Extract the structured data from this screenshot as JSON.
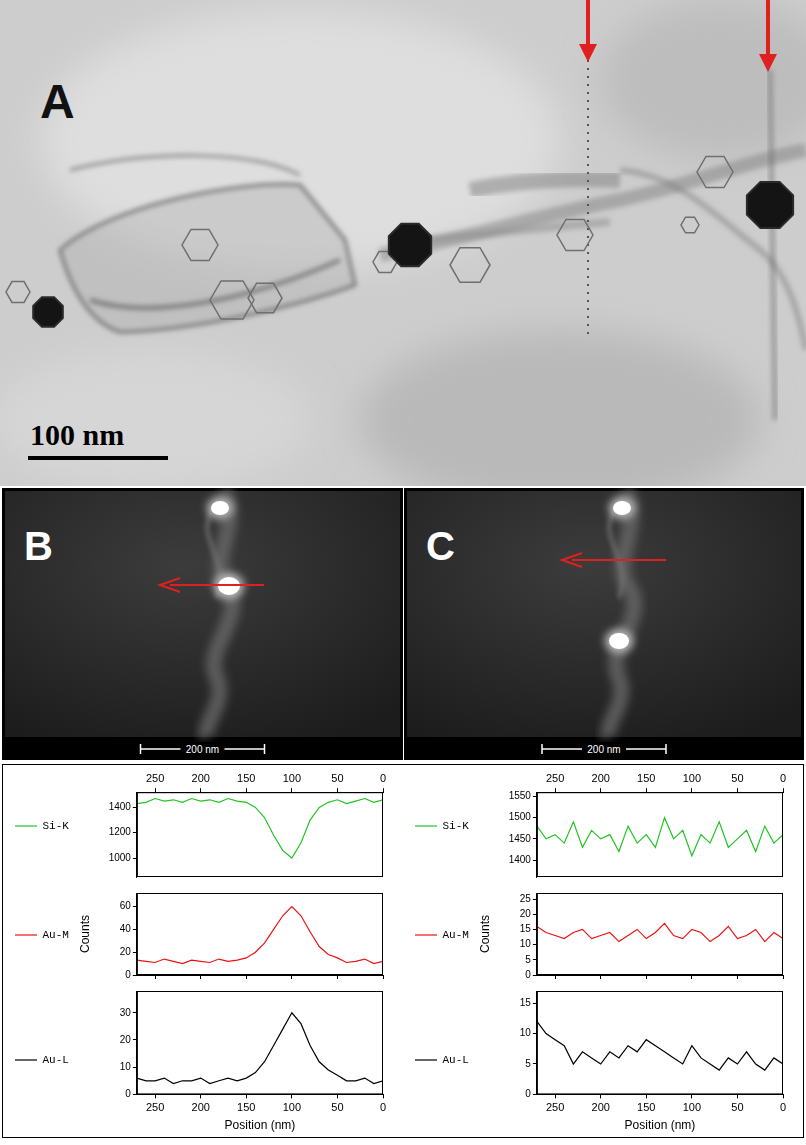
{
  "figure": {
    "panels": [
      {
        "label": "A",
        "scale_bar": "100 nm"
      },
      {
        "label": "B",
        "scale_bar": "200 nm"
      },
      {
        "label": "C",
        "scale_bar": "200 nm"
      }
    ]
  },
  "chart_data": [
    {
      "type": "line",
      "x": [
        0,
        10,
        20,
        30,
        40,
        50,
        60,
        70,
        80,
        90,
        100,
        110,
        120,
        130,
        140,
        150,
        160,
        170,
        180,
        190,
        200,
        210,
        220,
        230,
        240,
        250,
        260,
        270
      ],
      "xlim": [
        270,
        0
      ],
      "xticks": [
        0,
        50,
        100,
        150,
        200,
        250
      ],
      "ylim": [
        850,
        1520
      ],
      "yticks": [
        1000,
        1200,
        1400
      ],
      "series": [
        {
          "name": "Si-K",
          "color": "#22c422",
          "values": [
            1460,
            1440,
            1470,
            1450,
            1430,
            1460,
            1440,
            1400,
            1300,
            1120,
            1000,
            1060,
            1180,
            1320,
            1400,
            1440,
            1450,
            1470,
            1440,
            1460,
            1450,
            1470,
            1440,
            1460,
            1450,
            1470,
            1440,
            1430
          ]
        }
      ],
      "grid": false,
      "legend": "left",
      "tick_labels": true
    },
    {
      "type": "line",
      "x": [
        0,
        10,
        20,
        30,
        40,
        50,
        60,
        70,
        80,
        90,
        100,
        110,
        120,
        130,
        140,
        150,
        160,
        170,
        180,
        190,
        200,
        210,
        220,
        230,
        240,
        250,
        260,
        270
      ],
      "xlim": [
        270,
        0
      ],
      "xticks": [
        0,
        50,
        100,
        150,
        200,
        250
      ],
      "ylim": [
        0,
        72
      ],
      "yticks": [
        0,
        20,
        40,
        60
      ],
      "y_label": "Counts",
      "series": [
        {
          "name": "Au-M",
          "color": "#ee1111",
          "values": [
            12,
            10,
            14,
            12,
            11,
            15,
            18,
            25,
            38,
            52,
            60,
            52,
            40,
            28,
            20,
            15,
            13,
            12,
            14,
            11,
            12,
            13,
            10,
            12,
            14,
            11,
            12,
            13
          ]
        }
      ],
      "grid": false,
      "legend": "left",
      "tick_labels": "y"
    },
    {
      "type": "line",
      "x": [
        0,
        10,
        20,
        30,
        40,
        50,
        60,
        70,
        80,
        90,
        100,
        110,
        120,
        130,
        140,
        150,
        160,
        170,
        180,
        190,
        200,
        210,
        220,
        230,
        240,
        250,
        260,
        270
      ],
      "xlim": [
        270,
        0
      ],
      "xticks": [
        0,
        50,
        100,
        150,
        200,
        250
      ],
      "ylim": [
        0,
        38
      ],
      "yticks": [
        0,
        10,
        20,
        30
      ],
      "x_label": "Position (nm)",
      "series": [
        {
          "name": "Au-L",
          "color": "#000000",
          "values": [
            5,
            4,
            6,
            5,
            5,
            7,
            9,
            12,
            18,
            26,
            30,
            24,
            18,
            12,
            8,
            6,
            5,
            6,
            5,
            4,
            6,
            5,
            5,
            4,
            6,
            5,
            5,
            6
          ]
        }
      ],
      "grid": false,
      "legend": "left",
      "tick_labels": true
    },
    {
      "type": "line",
      "x": [
        0,
        10,
        20,
        30,
        40,
        50,
        60,
        70,
        80,
        90,
        100,
        110,
        120,
        130,
        140,
        150,
        160,
        170,
        180,
        190,
        200,
        210,
        220,
        230,
        240,
        250,
        260,
        270
      ],
      "xlim": [
        270,
        0
      ],
      "xticks": [
        0,
        50,
        100,
        150,
        200,
        250
      ],
      "ylim": [
        1360,
        1560
      ],
      "yticks": [
        1400,
        1450,
        1500,
        1550
      ],
      "series": [
        {
          "name": "Si-K",
          "color": "#22c422",
          "values": [
            1460,
            1440,
            1480,
            1420,
            1470,
            1450,
            1430,
            1490,
            1440,
            1460,
            1410,
            1470,
            1450,
            1500,
            1430,
            1460,
            1440,
            1480,
            1420,
            1460,
            1450,
            1470,
            1430,
            1490,
            1440,
            1460,
            1450,
            1480
          ]
        }
      ],
      "grid": false,
      "legend": "left",
      "tick_labels": true
    },
    {
      "type": "line",
      "x": [
        0,
        10,
        20,
        30,
        40,
        50,
        60,
        70,
        80,
        90,
        100,
        110,
        120,
        130,
        140,
        150,
        160,
        170,
        180,
        190,
        200,
        210,
        220,
        230,
        240,
        250,
        260,
        270
      ],
      "xlim": [
        270,
        0
      ],
      "xticks": [
        0,
        50,
        100,
        150,
        200,
        250
      ],
      "ylim": [
        0,
        27
      ],
      "yticks": [
        0,
        5,
        10,
        15,
        20,
        25
      ],
      "y_label": "Counts",
      "series": [
        {
          "name": "Au-M",
          "color": "#ee1111",
          "values": [
            12,
            14,
            11,
            15,
            13,
            12,
            16,
            13,
            11,
            14,
            15,
            12,
            13,
            17,
            14,
            12,
            15,
            13,
            11,
            14,
            13,
            12,
            15,
            14,
            12,
            13,
            14,
            16
          ]
        }
      ],
      "grid": false,
      "legend": "left",
      "tick_labels": "y"
    },
    {
      "type": "line",
      "x": [
        0,
        10,
        20,
        30,
        40,
        50,
        60,
        70,
        80,
        90,
        100,
        110,
        120,
        130,
        140,
        150,
        160,
        170,
        180,
        190,
        200,
        210,
        220,
        230,
        240,
        250,
        260,
        270
      ],
      "xlim": [
        270,
        0
      ],
      "xticks": [
        0,
        50,
        100,
        150,
        200,
        250
      ],
      "ylim": [
        0,
        17
      ],
      "yticks": [
        0,
        5,
        10,
        15
      ],
      "x_label": "Position (nm)",
      "series": [
        {
          "name": "Au-L",
          "color": "#000000",
          "values": [
            5,
            6,
            4,
            5,
            7,
            5,
            6,
            4,
            5,
            6,
            8,
            5,
            6,
            7,
            8,
            9,
            7,
            8,
            6,
            7,
            5,
            6,
            7,
            5,
            8,
            9,
            10,
            12
          ]
        }
      ],
      "grid": false,
      "legend": "left",
      "tick_labels": true
    }
  ]
}
